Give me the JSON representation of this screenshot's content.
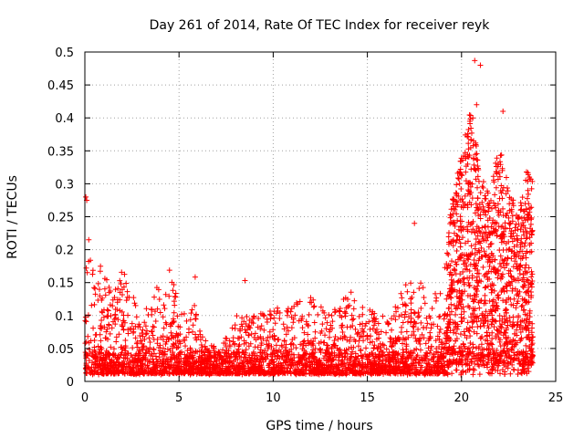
{
  "chart_data": {
    "type": "scatter",
    "title": "Day 261 of 2014, Rate Of TEC Index for receiver reyk",
    "xlabel": "GPS time / hours",
    "ylabel": "ROTI / TECUs",
    "xlim": [
      0,
      25
    ],
    "ylim": [
      0,
      0.5
    ],
    "xticks": [
      "0",
      "5",
      "10",
      "15",
      "20",
      "25"
    ],
    "yticks": [
      "0",
      "0.05",
      "0.1",
      "0.15",
      "0.2",
      "0.25",
      "0.3",
      "0.35",
      "0.4",
      "0.45",
      "0.5"
    ],
    "grid": true,
    "marker": "+",
    "color": "#ff0000",
    "envelope_x": [
      0,
      0.15,
      0.3,
      0.6,
      1,
      1.5,
      2,
      2.5,
      3,
      3.5,
      4,
      4.5,
      5,
      5.5,
      5.8,
      6.2,
      7,
      8,
      9,
      10,
      11,
      12,
      13,
      14,
      15,
      16,
      17,
      18,
      19,
      19.5,
      20,
      20.5,
      21,
      21.5,
      22,
      22.5,
      23,
      23.5,
      23.8
    ],
    "envelope_y": [
      0.12,
      0.27,
      0.2,
      0.19,
      0.17,
      0.13,
      0.17,
      0.14,
      0.09,
      0.13,
      0.15,
      0.17,
      0.13,
      0.09,
      0.18,
      0.07,
      0.05,
      0.1,
      0.1,
      0.11,
      0.12,
      0.13,
      0.1,
      0.15,
      0.11,
      0.1,
      0.15,
      0.15,
      0.14,
      0.28,
      0.35,
      0.42,
      0.31,
      0.29,
      0.36,
      0.3,
      0.25,
      0.33,
      0.3
    ],
    "outliers": [
      {
        "x": 20.7,
        "y": 0.487
      },
      {
        "x": 21.0,
        "y": 0.48
      },
      {
        "x": 20.8,
        "y": 0.42
      },
      {
        "x": 22.2,
        "y": 0.41
      },
      {
        "x": 20.6,
        "y": 0.4
      },
      {
        "x": 17.5,
        "y": 0.24
      },
      {
        "x": 8.5,
        "y": 0.153
      },
      {
        "x": 0.05,
        "y": 0.28
      },
      {
        "x": 0.1,
        "y": 0.275
      }
    ],
    "point_count": 2600
  }
}
